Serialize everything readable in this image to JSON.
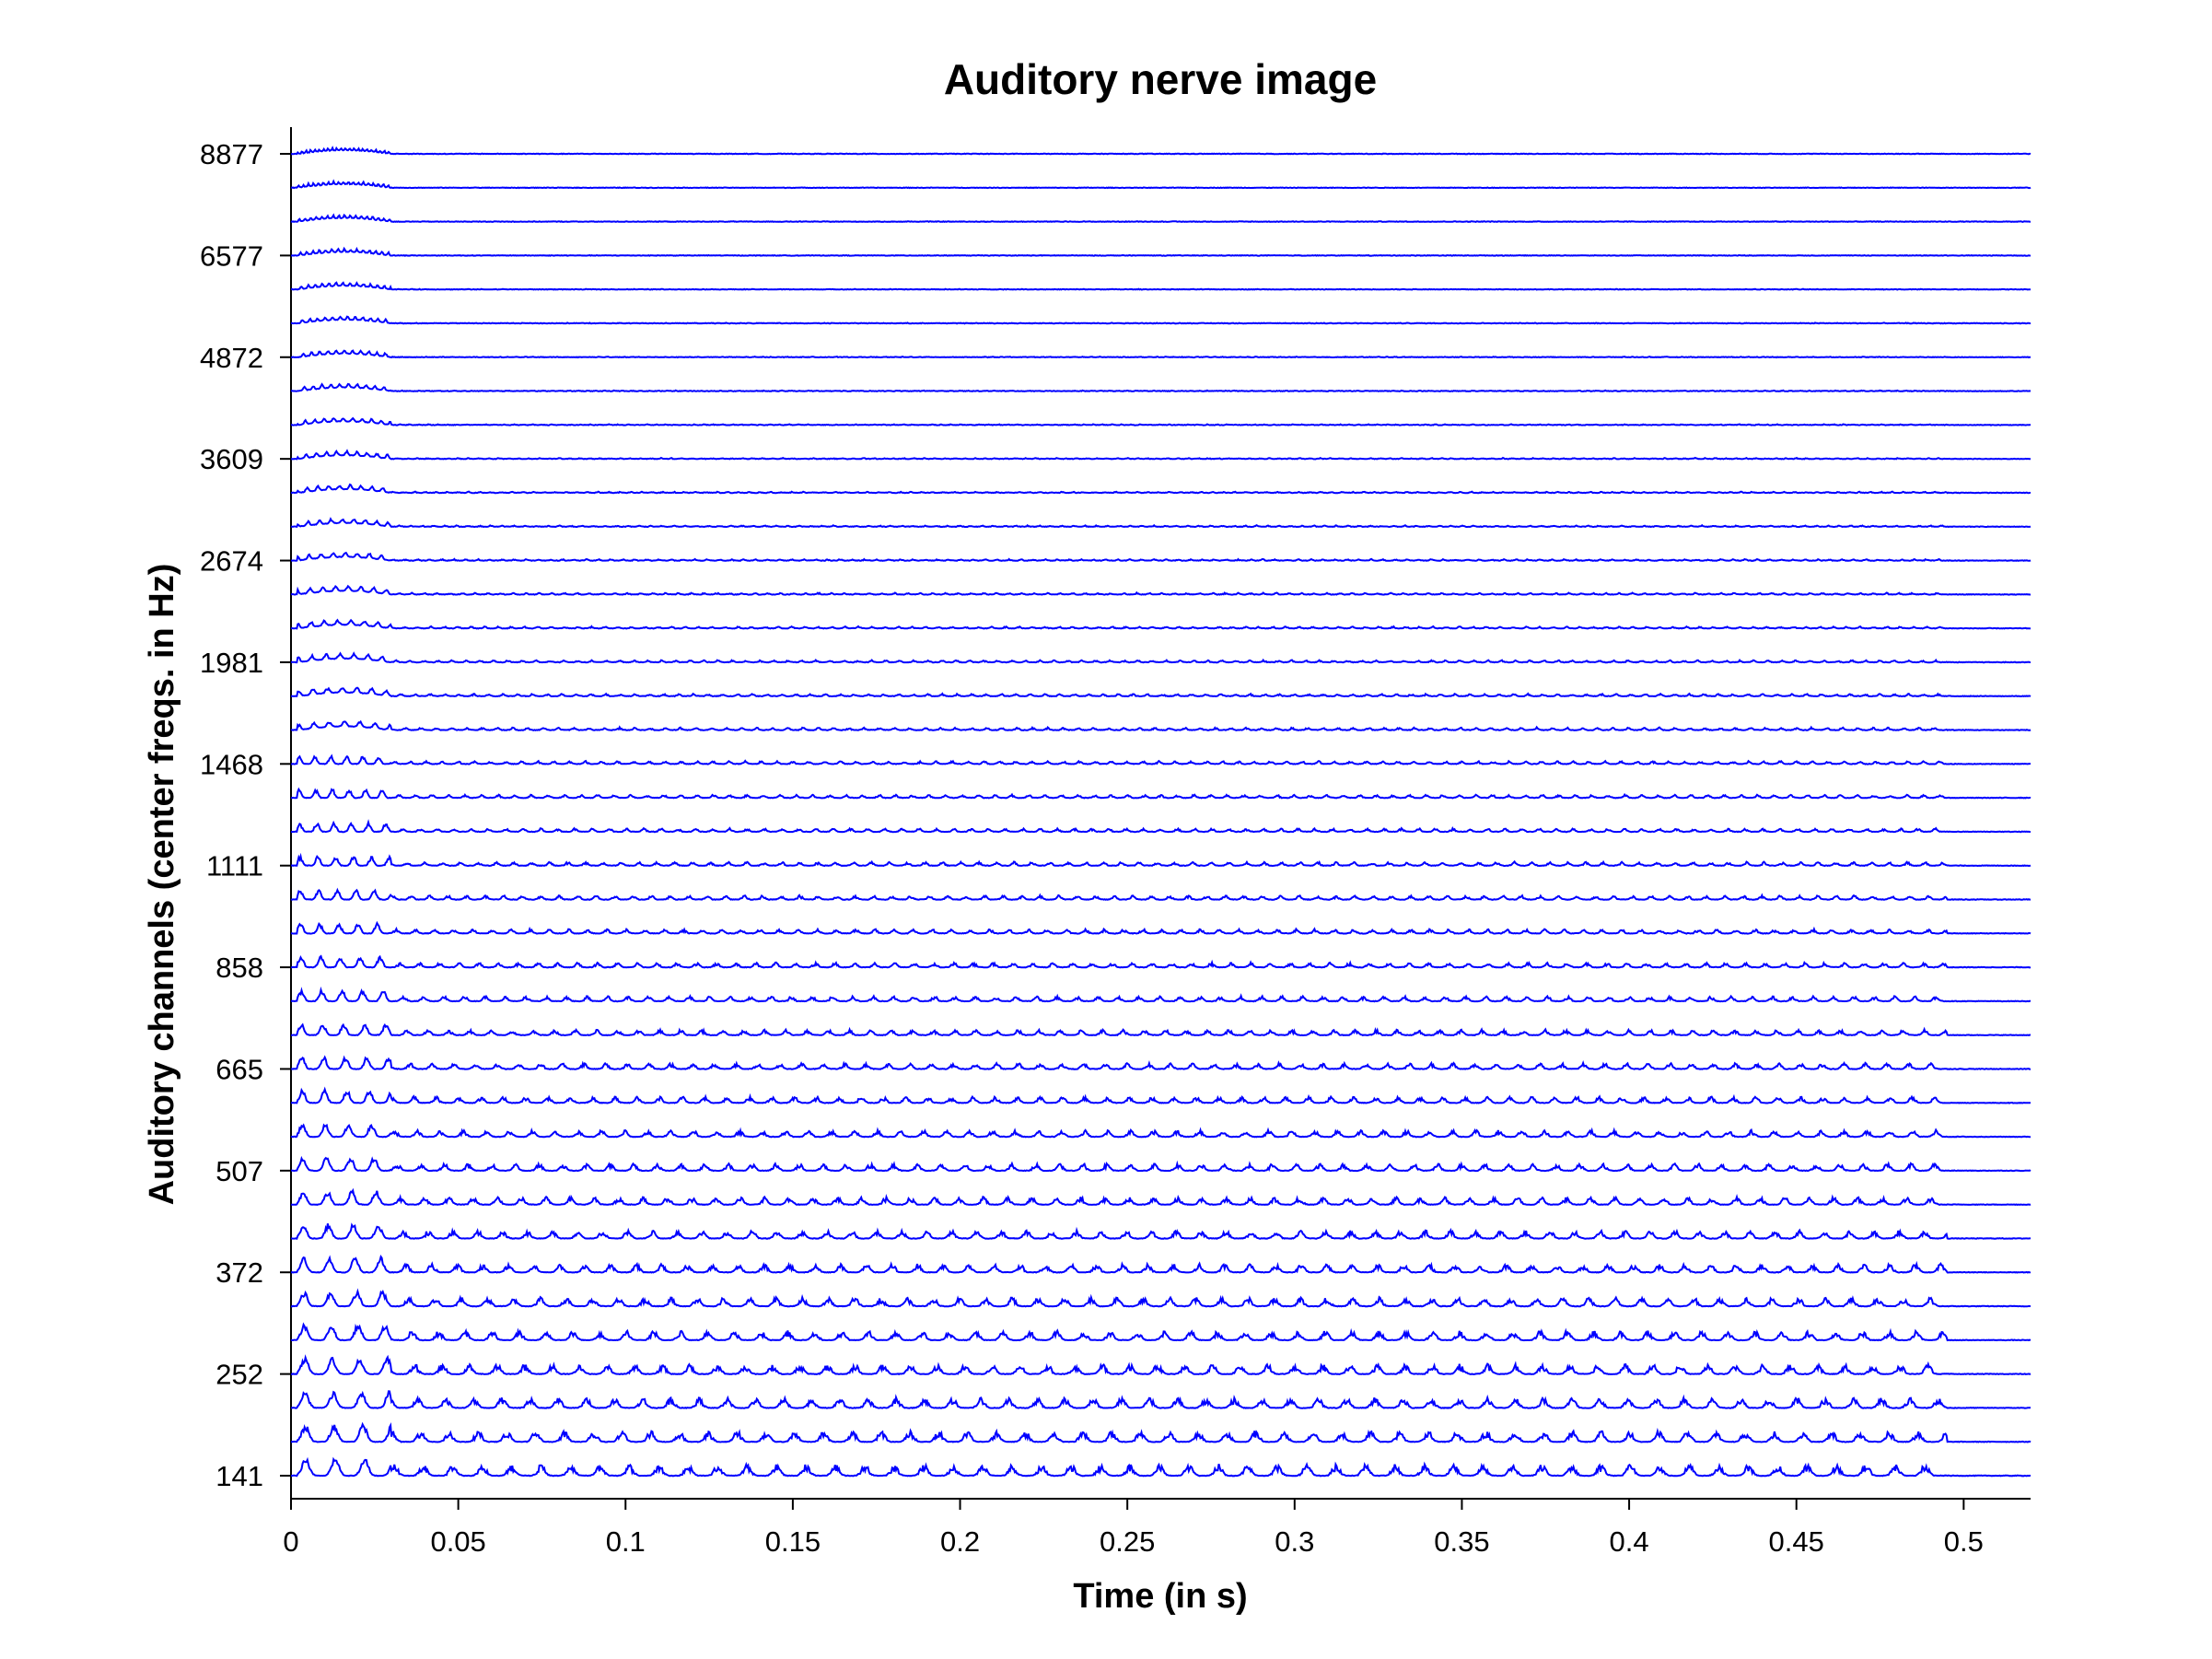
{
  "chart_data": {
    "type": "line",
    "title": "Auditory nerve image",
    "xlabel": "Time (in s)",
    "ylabel": "Auditory channels (center freqs. in Hz)",
    "xlim": [
      0,
      0.52
    ],
    "x_ticks": [
      0,
      0.05,
      0.1,
      0.15,
      0.2,
      0.25,
      0.3,
      0.35,
      0.4,
      0.45,
      0.5
    ],
    "x_tick_labels": [
      "0",
      "0.05",
      "0.1",
      "0.15",
      "0.2",
      "0.25",
      "0.3",
      "0.35",
      "0.4",
      "0.45",
      "0.5"
    ],
    "channel_count": 40,
    "y_tick_channels": [
      1,
      4,
      7,
      10,
      13,
      16,
      19,
      22,
      25,
      28,
      31,
      34,
      37,
      40
    ],
    "y_tick_labels": [
      "141",
      "252",
      "372",
      "507",
      "665",
      "858",
      "1111",
      "1468",
      "1981",
      "2674",
      "3609",
      "4872",
      "6577",
      "8877"
    ],
    "signal_end_time": 0.495,
    "grid": false,
    "line_color": "#0000FF"
  }
}
